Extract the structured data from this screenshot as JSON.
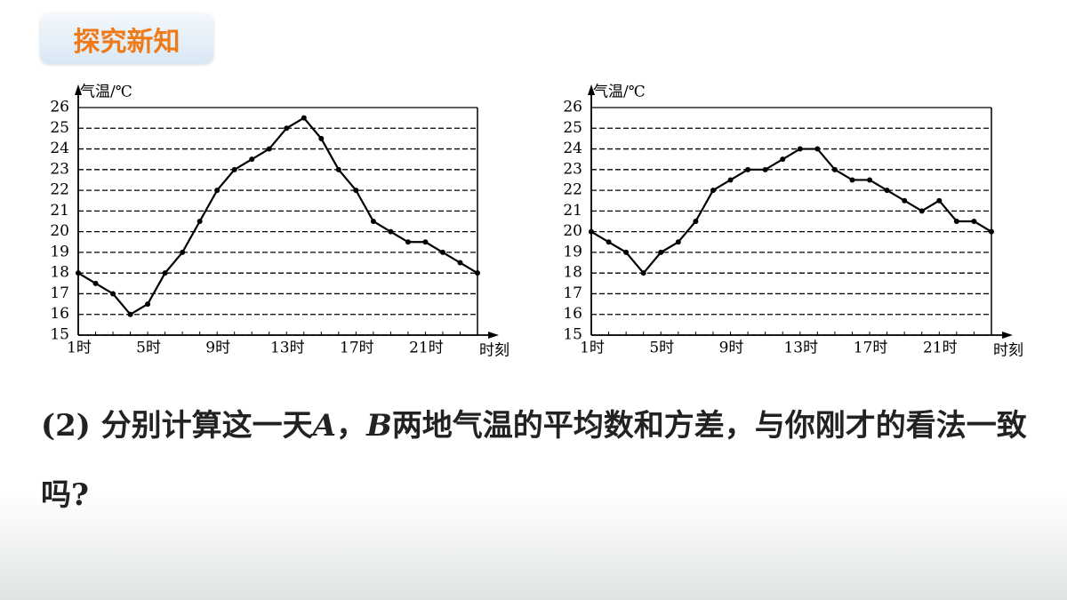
{
  "header": {
    "title": "探究新知"
  },
  "chart_data": [
    {
      "type": "line",
      "y_label": "气温/℃",
      "x_label": "时刻",
      "categories": [
        "1时",
        null,
        null,
        null,
        "5时",
        null,
        null,
        null,
        "9时",
        null,
        null,
        null,
        "13时",
        null,
        null,
        null,
        "17时",
        null,
        null,
        null,
        "21时",
        null,
        null,
        null
      ],
      "values": [
        18,
        17.5,
        17,
        16,
        16.5,
        18,
        19,
        20.5,
        22,
        23,
        23.5,
        24,
        25,
        25.5,
        24.5,
        23,
        22,
        20.5,
        20,
        19.5,
        19.5,
        19,
        18.5,
        18
      ],
      "color": "#000000",
      "ylim": [
        15,
        26
      ],
      "yticks": [
        15,
        16,
        17,
        18,
        19,
        20,
        21,
        22,
        23,
        24,
        25,
        26
      ],
      "grid": true
    },
    {
      "type": "line",
      "y_label": "气温/℃",
      "x_label": "时刻",
      "categories": [
        "1时",
        null,
        null,
        null,
        "5时",
        null,
        null,
        null,
        "9时",
        null,
        null,
        null,
        "13时",
        null,
        null,
        null,
        "17时",
        null,
        null,
        null,
        "21时",
        null,
        null,
        null
      ],
      "values": [
        20,
        19.5,
        19,
        18,
        19,
        19.5,
        20.5,
        22,
        22.5,
        23,
        23,
        23.5,
        24,
        24,
        23,
        22.5,
        22.5,
        22,
        21.5,
        21,
        21.5,
        20.5,
        20.5,
        20
      ],
      "color": "#000000",
      "ylim": [
        15,
        26
      ],
      "yticks": [
        15,
        16,
        17,
        18,
        19,
        20,
        21,
        22,
        23,
        24,
        25,
        26
      ],
      "grid": true
    }
  ],
  "question": {
    "runs": [
      "(2) 分别计算这一天",
      "A",
      "，",
      "B",
      "两地气温的平均数和方差，与你刚才的看法一致吗?"
    ]
  }
}
